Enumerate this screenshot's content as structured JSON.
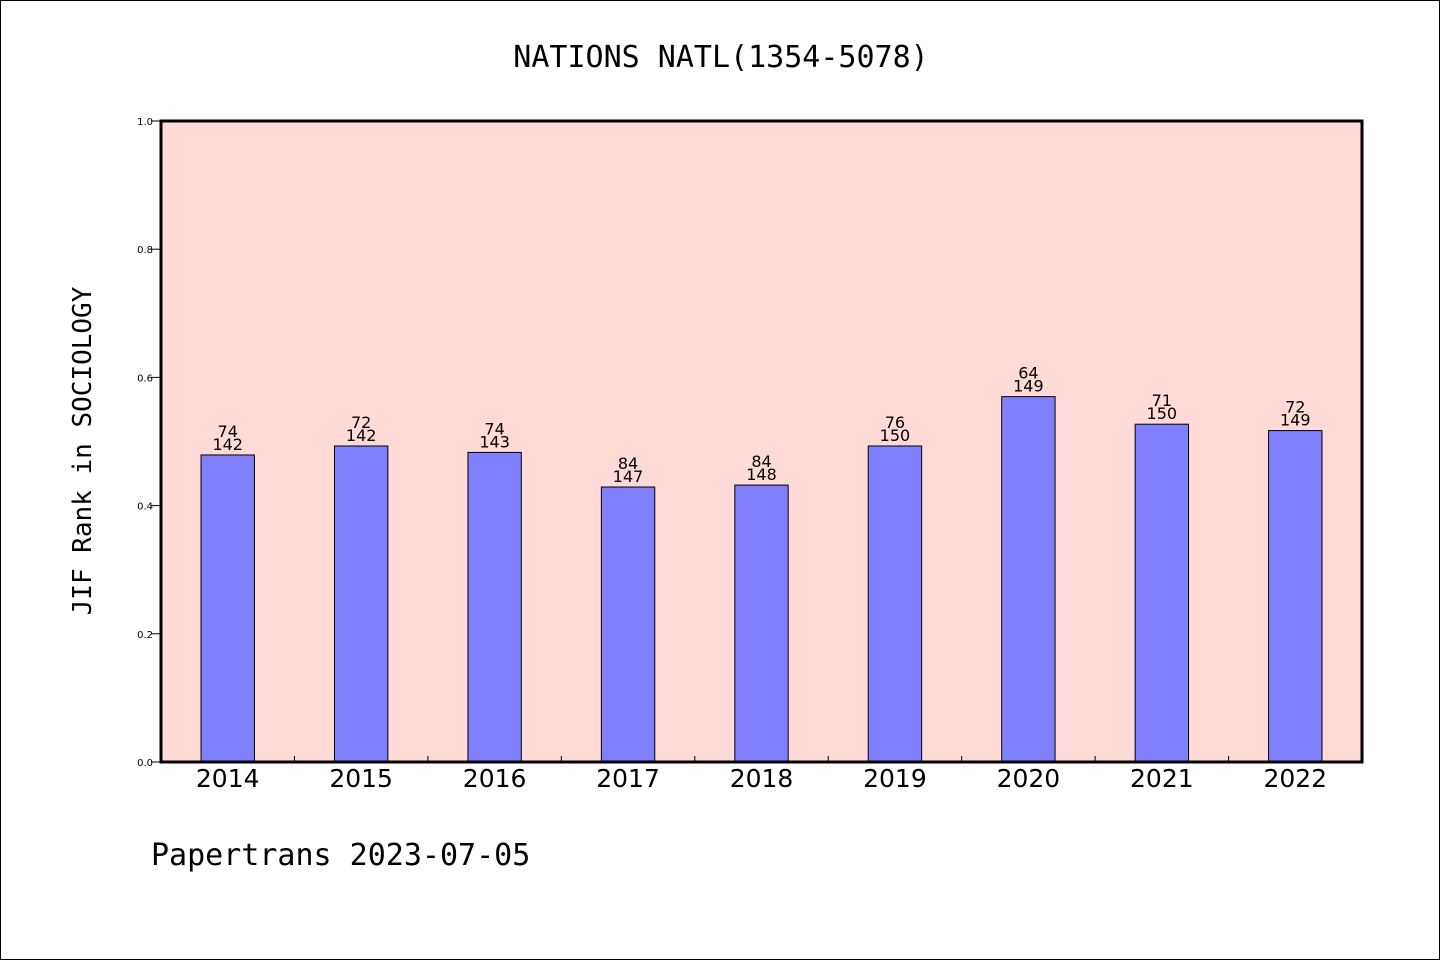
{
  "chart_data": {
    "type": "bar",
    "title": "NATIONS NATL(1354-5078)",
    "xlabel": "",
    "ylabel": "JIF Rank in SOCIOLOGY",
    "ylim": [
      0,
      1.0
    ],
    "yticks": [
      "0.0",
      "0.2",
      "0.4",
      "0.6",
      "0.8",
      "1.0"
    ],
    "categories": [
      "2014",
      "2015",
      "2016",
      "2017",
      "2018",
      "2019",
      "2020",
      "2021",
      "2022"
    ],
    "values": [
      0.479,
      0.493,
      0.483,
      0.429,
      0.432,
      0.493,
      0.57,
      0.527,
      0.517
    ],
    "bar_labels": [
      [
        "74",
        "142"
      ],
      [
        "72",
        "142"
      ],
      [
        "74",
        "143"
      ],
      [
        "84",
        "147"
      ],
      [
        "84",
        "148"
      ],
      [
        "76",
        "150"
      ],
      [
        "64",
        "149"
      ],
      [
        "71",
        "150"
      ],
      [
        "72",
        "149"
      ]
    ],
    "grid": false,
    "legend": "none",
    "colors": {
      "bar": "#8080ff",
      "plot_background": "#ffdad7",
      "axis": "#000000"
    }
  },
  "footer": "Papertrans 2023-07-05"
}
